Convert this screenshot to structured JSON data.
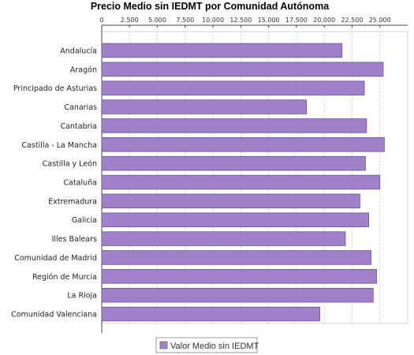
{
  "chart_data": {
    "type": "bar",
    "orientation": "horizontal",
    "title": "Precio Medio sin IEDMT por Comunidad Autónoma",
    "xlabel": "",
    "ylabel": "",
    "xlim": [
      0,
      27500
    ],
    "x_ticks": [
      0,
      2500,
      5000,
      7500,
      10000,
      12500,
      15000,
      17500,
      20000,
      22500,
      25000
    ],
    "x_tick_labels": [
      "0",
      "2.500",
      "5.000",
      "7.500",
      "10.000",
      "12.500",
      "15.000",
      "17.500",
      "20.000",
      "22.500",
      "25.000"
    ],
    "axis_position": "top",
    "grid": "vertical-dashed",
    "legend_position": "bottom-center",
    "categories": [
      "Andalucía",
      "Aragón",
      "Principado de Asturias",
      "Canarias",
      "Cantabria",
      "Castilla - La Mancha",
      "Castilla y León",
      "Cataluña",
      "Extremadura",
      "Galicia",
      "Illes Balears",
      "Comunidad de Madrid",
      "Región de Murcia",
      "La Rioja",
      "Comunidad Valenciana"
    ],
    "series": [
      {
        "name": "Valor Medio sin IEDMT",
        "color": "#a080c8",
        "values": [
          21600,
          25300,
          23600,
          18400,
          23800,
          25400,
          23700,
          25000,
          23200,
          24000,
          21900,
          24200,
          24700,
          24400,
          19600
        ]
      }
    ]
  }
}
